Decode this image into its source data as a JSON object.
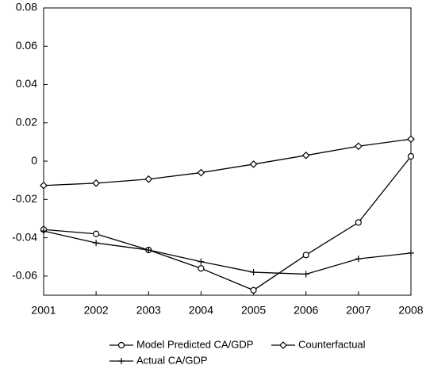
{
  "chart_data": {
    "type": "line",
    "x": [
      2001,
      2002,
      2003,
      2004,
      2005,
      2006,
      2007,
      2008
    ],
    "xlim": [
      2001,
      2008
    ],
    "xticks": [
      2001,
      2002,
      2003,
      2004,
      2005,
      2006,
      2007,
      2008
    ],
    "ylim": [
      -0.07,
      0.08
    ],
    "yticks": [
      -0.06,
      -0.04,
      -0.02,
      0,
      0.02,
      0.04,
      0.06,
      0.08
    ],
    "series": [
      {
        "name": "Model Predicted CA/GDP",
        "color": "#000000",
        "marker": "circle",
        "values": [
          -0.0357,
          -0.038,
          -0.0464,
          -0.056,
          -0.0674,
          -0.049,
          -0.032,
          0.0025
        ]
      },
      {
        "name": "Counterfactual",
        "color": "#000000",
        "marker": "diamond",
        "values": [
          -0.0127,
          -0.0115,
          -0.0094,
          -0.006,
          -0.0016,
          0.003,
          0.0078,
          0.0115
        ]
      },
      {
        "name": "Actual CA/GDP",
        "color": "#000000",
        "marker": "plus",
        "values": [
          -0.0365,
          -0.0427,
          -0.0464,
          -0.0525,
          -0.058,
          -0.059,
          -0.051,
          -0.048
        ]
      }
    ]
  }
}
